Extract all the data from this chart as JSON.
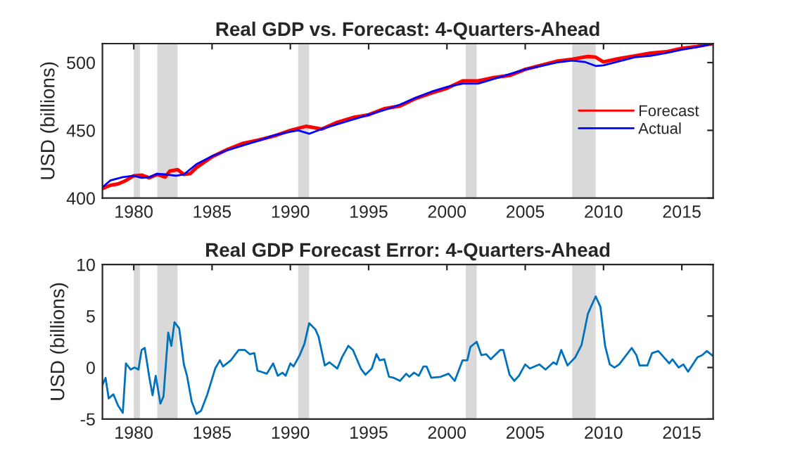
{
  "chart_data": [
    {
      "type": "line",
      "title": "Real GDP vs. Forecast: 4-Quarters-Ahead",
      "ylabel": "USD (billions)",
      "xlim": [
        1978,
        2017
      ],
      "ylim": [
        400,
        514
      ],
      "xticks": [
        1980,
        1985,
        1990,
        1995,
        2000,
        2005,
        2010,
        2015
      ],
      "yticks": [
        400,
        450,
        500
      ],
      "grid": false,
      "legend": "right",
      "bands": [
        {
          "axis": "x",
          "from": 1980.0,
          "to": 1980.4,
          "color": "#d9d9d9"
        },
        {
          "axis": "x",
          "from": 1981.5,
          "to": 1982.8,
          "color": "#d9d9d9"
        },
        {
          "axis": "x",
          "from": 1990.5,
          "to": 1991.2,
          "color": "#d9d9d9"
        },
        {
          "axis": "x",
          "from": 2001.2,
          "to": 2001.9,
          "color": "#d9d9d9"
        },
        {
          "axis": "x",
          "from": 2008.0,
          "to": 2009.5,
          "color": "#d9d9d9"
        }
      ],
      "series": [
        {
          "name": "Forecast",
          "color": "#ff0000",
          "x": [
            1978.0,
            1978.5,
            1979.0,
            1979.5,
            1980.0,
            1980.5,
            1981.0,
            1981.5,
            1982.0,
            1982.3,
            1982.8,
            1983.2,
            1983.6,
            1984.0,
            1985.0,
            1986.0,
            1987.0,
            1988.0,
            1989.0,
            1990.0,
            1991.0,
            1991.5,
            1992.0,
            1993.0,
            1994.0,
            1995.0,
            1996.0,
            1997.0,
            1998.0,
            1999.0,
            2000.0,
            2001.0,
            2002.0,
            2003.0,
            2004.0,
            2005.0,
            2006.0,
            2007.0,
            2008.0,
            2009.0,
            2009.5,
            2010.0,
            2011.0,
            2012.0,
            2013.0,
            2014.0,
            2015.0,
            2016.0,
            2017.0
          ],
          "values": [
            407,
            409.5,
            410.5,
            413,
            416.5,
            417,
            415,
            417.5,
            415.5,
            420,
            421,
            417.5,
            418,
            422.5,
            430.5,
            436,
            440.5,
            443,
            446,
            450,
            453,
            452,
            451,
            456,
            459.5,
            461.5,
            466,
            468,
            473.5,
            477.5,
            481,
            486.5,
            486.5,
            489,
            490.5,
            495,
            498,
            501,
            502.5,
            504.5,
            504,
            500.5,
            503,
            505,
            507,
            508,
            510.5,
            512,
            514
          ]
        },
        {
          "name": "Actual",
          "color": "#0000ff",
          "x": [
            1978.0,
            1978.5,
            1979.3,
            1980.0,
            1980.5,
            1981.0,
            1981.5,
            1982.0,
            1982.7,
            1983.2,
            1984.0,
            1985.0,
            1986.0,
            1987.0,
            1988.0,
            1989.0,
            1990.0,
            1990.5,
            1991.2,
            1992.0,
            1993.0,
            1994.0,
            1995.0,
            1996.0,
            1997.0,
            1998.0,
            1999.0,
            2000.0,
            2001.0,
            2002.0,
            2003.0,
            2004.0,
            2005.0,
            2006.0,
            2007.0,
            2008.0,
            2008.8,
            2009.5,
            2010.0,
            2011.0,
            2012.0,
            2013.0,
            2014.0,
            2015.0,
            2016.0,
            2017.0
          ],
          "values": [
            408,
            413,
            415.5,
            416.5,
            415,
            415.5,
            418,
            417.5,
            416.5,
            417.5,
            425,
            431,
            435.5,
            439,
            442.5,
            446.5,
            449,
            450,
            447.5,
            451,
            454.5,
            458,
            461.5,
            465,
            469,
            474,
            478.5,
            482,
            484.5,
            484.5,
            488,
            491.5,
            495,
            497.5,
            500,
            501.5,
            500.5,
            497.5,
            498,
            501,
            504,
            505,
            507,
            509.5,
            511.5,
            514
          ]
        }
      ]
    },
    {
      "type": "line",
      "title": "Real GDP Forecast Error: 4-Quarters-Ahead",
      "ylabel": "USD (billions)",
      "xlim": [
        1978,
        2017
      ],
      "ylim": [
        -5,
        10
      ],
      "xticks": [
        1980,
        1985,
        1990,
        1995,
        2000,
        2005,
        2010,
        2015
      ],
      "yticks": [
        {
          "value": -5,
          "label": "-5"
        },
        0,
        5,
        10
      ],
      "grid": false,
      "bands": [
        {
          "axis": "x",
          "from": 1980.0,
          "to": 1980.4,
          "color": "#d9d9d9"
        },
        {
          "axis": "x",
          "from": 1981.5,
          "to": 1982.8,
          "color": "#d9d9d9"
        },
        {
          "axis": "x",
          "from": 1990.5,
          "to": 1991.2,
          "color": "#d9d9d9"
        },
        {
          "axis": "x",
          "from": 2001.2,
          "to": 2001.9,
          "color": "#d9d9d9"
        },
        {
          "axis": "x",
          "from": 2008.0,
          "to": 2009.5,
          "color": "#d9d9d9"
        }
      ],
      "series": [
        {
          "color": "#0072bd",
          "x": [
            1978.0,
            1978.2,
            1978.4,
            1978.7,
            1979.0,
            1979.3,
            1979.5,
            1979.8,
            1980.05,
            1980.3,
            1980.5,
            1980.7,
            1981.0,
            1981.2,
            1981.4,
            1981.7,
            1981.9,
            1982.2,
            1982.4,
            1982.6,
            1982.9,
            1983.2,
            1983.4,
            1983.7,
            1984.0,
            1984.3,
            1984.7,
            1985.2,
            1985.5,
            1985.7,
            1986.2,
            1986.7,
            1987.1,
            1987.4,
            1987.7,
            1987.9,
            1988.5,
            1988.9,
            1989.2,
            1989.5,
            1989.7,
            1990.0,
            1990.2,
            1990.6,
            1990.9,
            1991.2,
            1991.6,
            1991.8,
            1992.2,
            1992.5,
            1993.0,
            1993.3,
            1993.7,
            1994.0,
            1994.5,
            1994.8,
            1995.2,
            1995.5,
            1995.7,
            1996.0,
            1996.3,
            1996.6,
            1997.0,
            1997.4,
            1997.6,
            1997.9,
            1998.2,
            1998.5,
            1998.7,
            1999.0,
            1999.6,
            2000.1,
            2000.5,
            2001.0,
            2001.3,
            2001.5,
            2001.9,
            2002.2,
            2002.5,
            2002.8,
            2003.4,
            2003.6,
            2004.0,
            2004.3,
            2004.6,
            2005.0,
            2005.3,
            2005.9,
            2006.3,
            2006.8,
            2007.0,
            2007.3,
            2007.7,
            2008.2,
            2008.6,
            2009.0,
            2009.2,
            2009.5,
            2009.8,
            2010.1,
            2010.4,
            2010.7,
            2011.0,
            2011.8,
            2012.1,
            2012.3,
            2012.8,
            2013.1,
            2013.5,
            2014.2,
            2014.4,
            2014.8,
            2015.1,
            2015.4,
            2016.0,
            2016.3,
            2016.6,
            2017.0
          ],
          "values": [
            -1.7,
            -1.0,
            -3.0,
            -2.6,
            -3.7,
            -4.4,
            0.4,
            -0.2,
            0.0,
            -0.2,
            1.7,
            1.9,
            -1.0,
            -2.7,
            -0.8,
            -3.5,
            -2.8,
            3.4,
            2.1,
            4.4,
            3.8,
            0.3,
            -0.8,
            -3.3,
            -4.5,
            -4.2,
            -2.6,
            -0.1,
            0.7,
            0.1,
            0.7,
            1.7,
            1.7,
            1.3,
            1.4,
            -0.3,
            -0.6,
            0.4,
            -0.8,
            -0.5,
            -0.8,
            0.4,
            0.1,
            1.2,
            2.3,
            4.3,
            3.7,
            3.0,
            0.2,
            0.5,
            -0.1,
            1.0,
            2.1,
            1.7,
            -0.1,
            -0.7,
            -0.1,
            1.3,
            0.7,
            0.8,
            -0.9,
            -1.0,
            -1.3,
            -0.6,
            -0.9,
            -0.5,
            -0.8,
            0.1,
            0.1,
            -1.0,
            -0.9,
            -0.6,
            -1.3,
            0.7,
            0.7,
            2.0,
            2.5,
            1.2,
            1.3,
            0.8,
            1.7,
            1.7,
            -0.7,
            -1.3,
            -0.8,
            0.3,
            -0.1,
            0.3,
            -0.2,
            0.5,
            0.3,
            1.7,
            0.2,
            1.0,
            2.2,
            5.2,
            5.9,
            6.9,
            5.9,
            2.1,
            0.3,
            0.0,
            0.3,
            1.9,
            1.2,
            0.2,
            0.2,
            1.4,
            1.6,
            0.4,
            0.8,
            0.0,
            0.3,
            -0.4,
            1.0,
            1.2,
            1.6,
            1.1
          ]
        }
      ]
    }
  ]
}
